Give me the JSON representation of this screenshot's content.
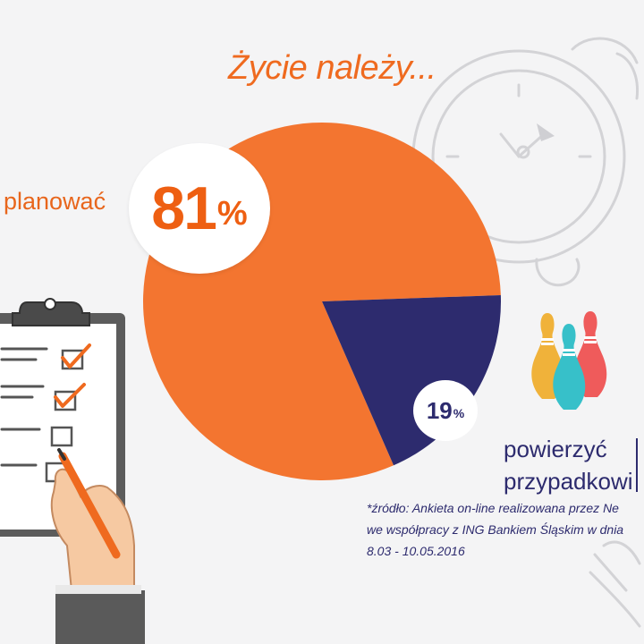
{
  "title": "Życie należy...",
  "chart_data": {
    "type": "pie",
    "categories": [
      "planować",
      "powierzyć przypadkowi"
    ],
    "values": [
      81,
      19
    ],
    "colors": [
      "#f37530",
      "#2d2b6e"
    ],
    "labels": {
      "big_num": "81",
      "big_pct": "%",
      "small_num": "19",
      "small_pct": "%"
    }
  },
  "labels": {
    "plan": "planować",
    "chance_line1": "powierzyć",
    "chance_line2": "przypadkowi"
  },
  "source": {
    "line1": "*źródło: Ankieta on-line realizowana przez Ne",
    "line2": "we współpracy z ING Bankiem Śląskim w dnia",
    "line3": "8.03 - 10.05.2016"
  },
  "icons": [
    "alarm-clock-icon",
    "clipboard-checklist-icon",
    "bowling-pins-icon",
    "pen-hand-icon"
  ]
}
